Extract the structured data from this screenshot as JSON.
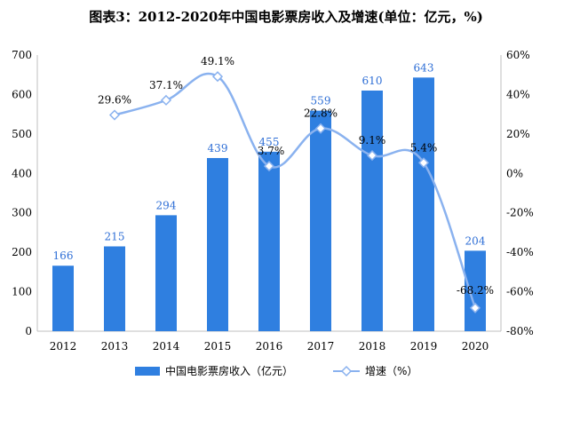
{
  "chart_data": {
    "type": "bar",
    "title": "图表3：2012-2020年中国电影票房收入及增速(单位：亿元，%)",
    "categories": [
      "2012",
      "2013",
      "2014",
      "2015",
      "2016",
      "2017",
      "2018",
      "2019",
      "2020"
    ],
    "series": [
      {
        "name": "中国电影票房收入（亿元）",
        "type": "bar",
        "axis": "left",
        "values": [
          166,
          215,
          294,
          439,
          455,
          559,
          610,
          643,
          204
        ],
        "value_labels": [
          "166",
          "215",
          "294",
          "439",
          "455",
          "559",
          "610",
          "643",
          "204"
        ]
      },
      {
        "name": "增速（%）",
        "type": "line",
        "axis": "right",
        "smooth": true,
        "marker": "diamond",
        "values": [
          null,
          29.6,
          37.1,
          49.1,
          3.7,
          22.8,
          9.1,
          5.4,
          -68.2
        ],
        "value_labels": [
          "",
          "29.6%",
          "37.1%",
          "49.1%",
          "3.7%",
          "22.8%",
          "9.1%",
          "5.4%",
          "-68.2%"
        ]
      }
    ],
    "y_left": {
      "min": 0,
      "max": 700,
      "ticks": [
        "0",
        "100",
        "200",
        "300",
        "400",
        "500",
        "600",
        "700"
      ]
    },
    "y_right": {
      "min": -80,
      "max": 60,
      "ticks": [
        "-80%",
        "-60%",
        "-40%",
        "-20%",
        "0%",
        "20%",
        "40%",
        "60%"
      ]
    },
    "legend_position": "bottom",
    "grid": false,
    "colors": {
      "bar": "#2f7fe0",
      "line": "#8ab2ef",
      "marker_fill": "#ffffff",
      "bar_label": "#2f6fd6"
    }
  }
}
